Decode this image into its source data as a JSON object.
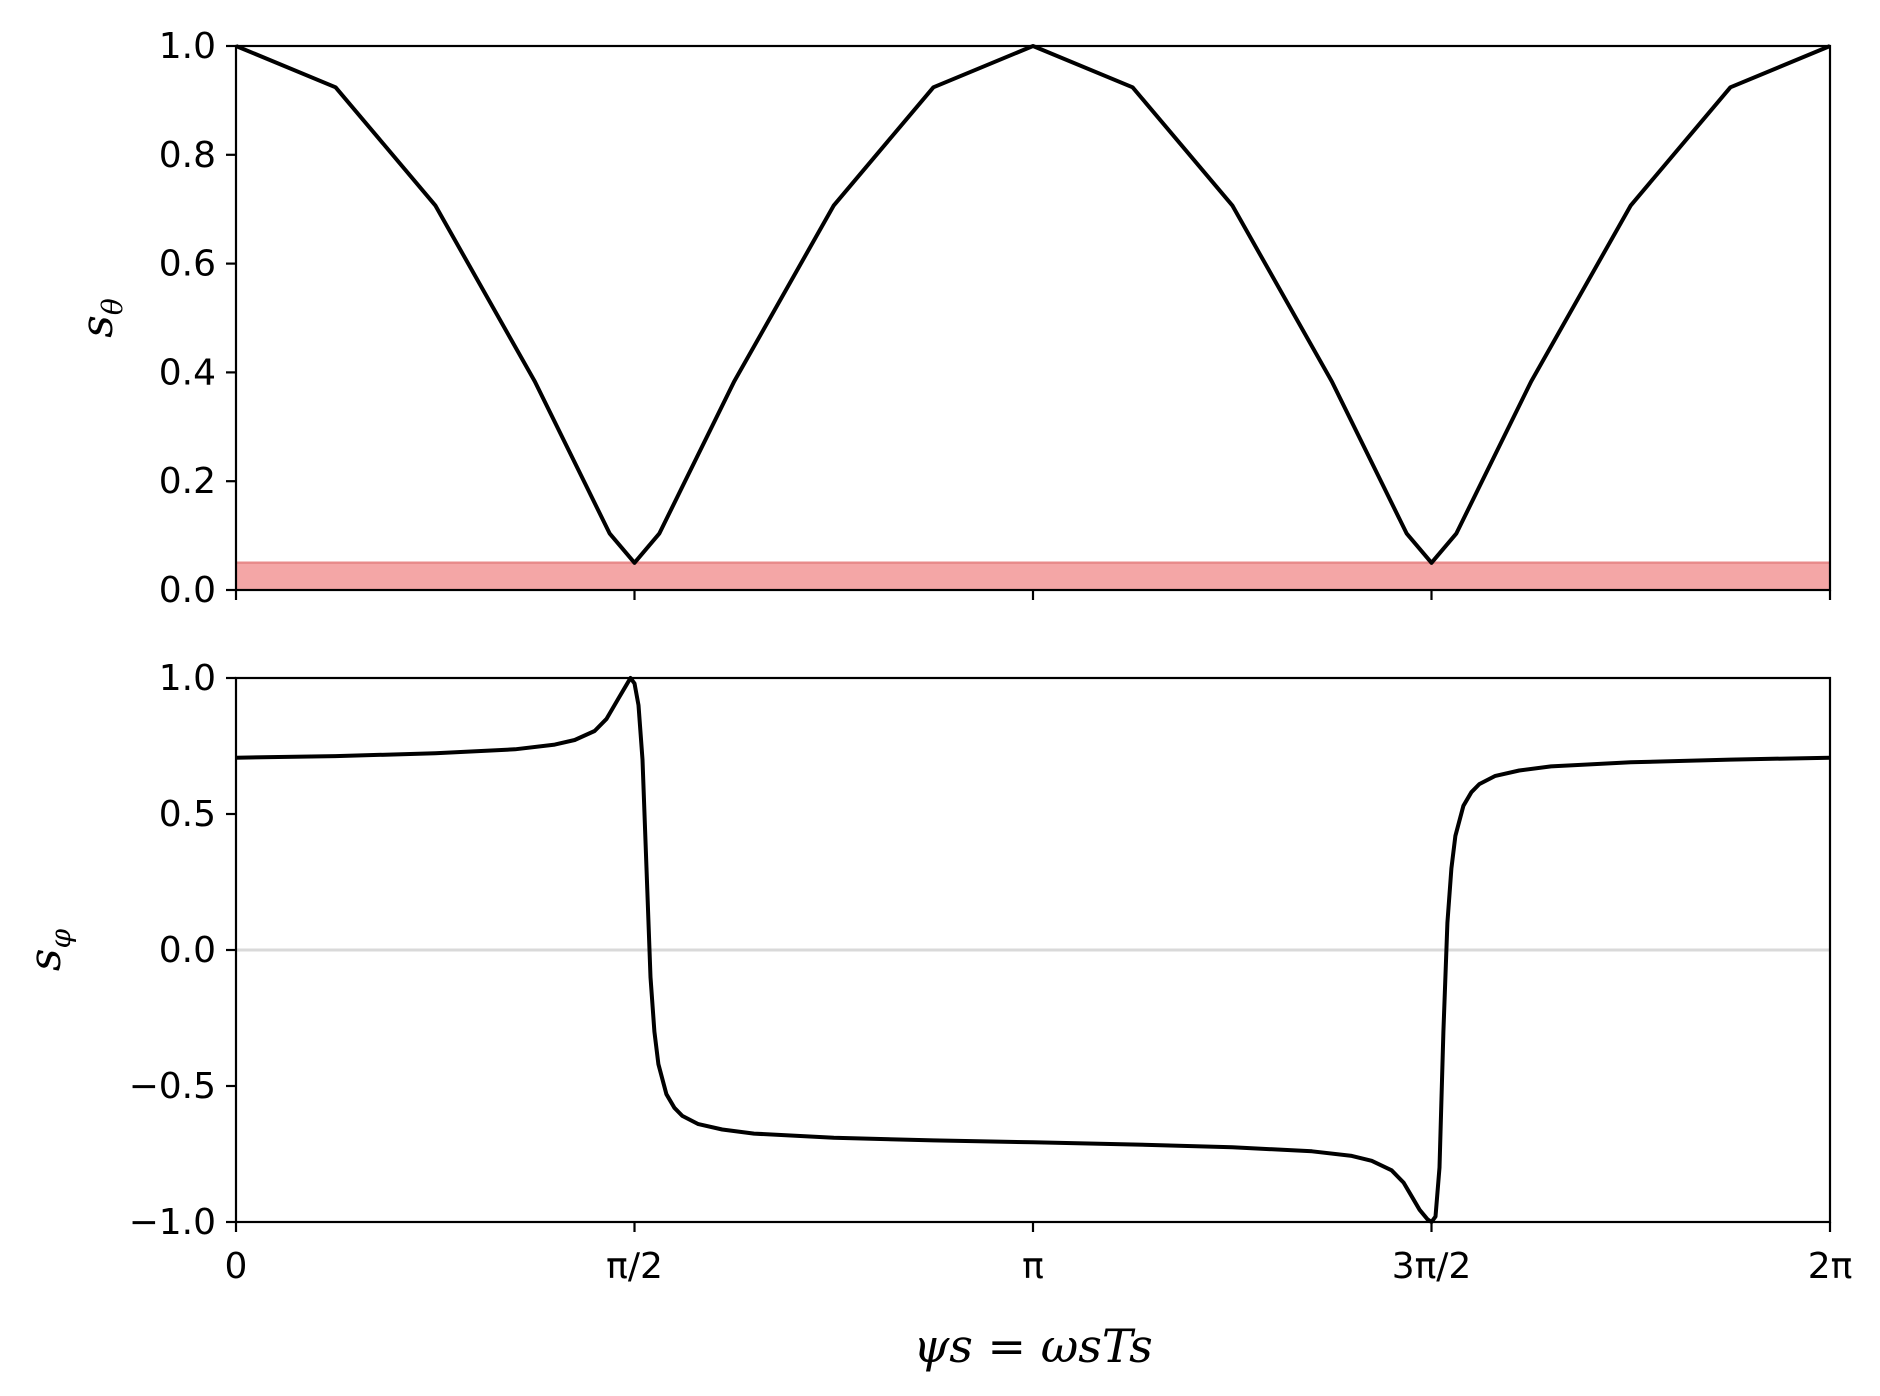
{
  "chart_data": [
    {
      "type": "line",
      "panel": "top",
      "ylabel": "sθ",
      "ylabel_main": "s",
      "ylabel_sub": "θ",
      "ylim": [
        0,
        1.0
      ],
      "xlim": [
        0,
        6.2832
      ],
      "yticks": [
        0.0,
        0.2,
        0.4,
        0.6,
        0.8,
        1.0
      ],
      "ytick_labels": [
        "0.0",
        "0.2",
        "0.4",
        "0.6",
        "0.8",
        "1.0"
      ],
      "xtick_labels_visible": false,
      "band": {
        "y0": 0.0,
        "y1": 0.05,
        "color": "#f4a6a6"
      },
      "series": [
        {
          "color": "#000000",
          "x": [
            0,
            0.3927,
            0.7854,
            1.1781,
            1.3744,
            1.4726,
            1.5708,
            1.669,
            1.7671,
            1.9635,
            2.3562,
            2.7489,
            3.1416,
            3.5343,
            3.927,
            4.3197,
            4.516,
            4.6142,
            4.7124,
            4.8106,
            4.9087,
            5.1051,
            5.4978,
            5.8905,
            6.2832
          ],
          "y": [
            1.0,
            0.924,
            0.707,
            0.383,
            0.197,
            0.104,
            0.05,
            0.104,
            0.197,
            0.383,
            0.707,
            0.924,
            1.0,
            0.924,
            0.707,
            0.383,
            0.197,
            0.104,
            0.05,
            0.104,
            0.197,
            0.383,
            0.707,
            0.924,
            1.0
          ]
        }
      ]
    },
    {
      "type": "line",
      "panel": "bottom",
      "ylabel": "sφ",
      "ylabel_main": "s",
      "ylabel_sub": "φ",
      "xlabel": "ψs = ωsTs",
      "ylim": [
        -1.0,
        1.0
      ],
      "xlim": [
        0,
        6.2832
      ],
      "yticks": [
        -1.0,
        -0.5,
        0.0,
        0.5,
        1.0
      ],
      "ytick_labels": [
        "−1.0",
        "−0.5",
        "0.0",
        "0.5",
        "1.0"
      ],
      "xticks": [
        0,
        1.5708,
        3.1416,
        4.7124,
        6.2832
      ],
      "xtick_labels": [
        "0",
        "π/2",
        "π",
        "3π/2",
        "2π"
      ],
      "zero_line": {
        "y": 0.0,
        "color": "#d9d9d9"
      },
      "series": [
        {
          "color": "#000000",
          "x": [
            0,
            0.3927,
            0.7854,
            1.0996,
            1.2566,
            1.3352,
            1.4137,
            1.4608,
            1.5079,
            1.5394,
            1.5551,
            1.5708,
            1.5865,
            1.6022,
            1.618,
            1.6337,
            1.6494,
            1.665,
            1.6965,
            1.7279,
            1.7593,
            1.8221,
            1.9164,
            2.042,
            2.3562,
            2.7489,
            3.1416,
            3.5343,
            3.927,
            4.2412,
            4.3982,
            4.4768,
            4.5553,
            4.6024,
            4.6338,
            4.6653,
            4.6967,
            4.7124,
            4.7281,
            4.7438,
            4.7595,
            4.7752,
            4.7909,
            4.8066,
            4.8381,
            4.8695,
            4.9009,
            4.9637,
            5.058,
            5.1836,
            5.4978,
            5.8905,
            6.2832
          ],
          "y": [
            0.707,
            0.713,
            0.723,
            0.738,
            0.755,
            0.772,
            0.805,
            0.85,
            0.925,
            0.975,
            1.0,
            0.98,
            0.9,
            0.7,
            0.3,
            -0.1,
            -0.3,
            -0.42,
            -0.53,
            -0.58,
            -0.61,
            -0.64,
            -0.66,
            -0.675,
            -0.69,
            -0.7,
            -0.707,
            -0.715,
            -0.725,
            -0.74,
            -0.757,
            -0.775,
            -0.81,
            -0.855,
            -0.905,
            -0.955,
            -0.99,
            -1.0,
            -0.98,
            -0.8,
            -0.3,
            0.1,
            0.3,
            0.42,
            0.53,
            0.58,
            0.61,
            0.64,
            0.66,
            0.675,
            0.69,
            0.7,
            0.707
          ]
        }
      ]
    }
  ]
}
